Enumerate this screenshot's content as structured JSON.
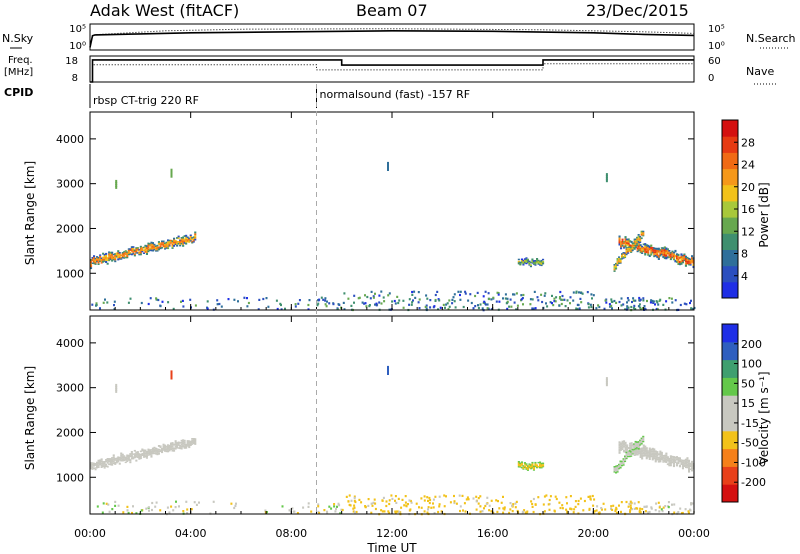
{
  "header": {
    "title": "Adak West (fitACF)",
    "beam": "Beam 07",
    "date": "23/Dec/2015"
  },
  "side_labels": {
    "nsky": "N.Sky",
    "freq_line1": "Freq.",
    "freq_line2": "[MHz]",
    "cpid": "CPID",
    "nsearch": "N.Search",
    "nave": "Nave"
  },
  "cpid_segments": [
    {
      "start_hour": 0,
      "label": "rbsp CT-trig 220 RF"
    },
    {
      "start_hour": 9.0,
      "label": "normalsound (fast) -157 RF"
    }
  ],
  "chart_data": [
    {
      "id": "noise",
      "type": "line",
      "left_axis": {
        "label": "N.Sky",
        "ticks": [
          "10^5",
          "10^0"
        ]
      },
      "right_axis": {
        "label": "N.Search",
        "ticks": [
          "10^5",
          "10^0"
        ]
      },
      "series": [
        {
          "name": "N.Sky",
          "style": "solid",
          "x_hours": [
            0,
            0.1,
            0.2,
            2,
            4,
            8,
            12,
            16,
            20,
            22,
            24
          ],
          "level": [
            0.1,
            0.55,
            0.58,
            0.62,
            0.66,
            0.7,
            0.74,
            0.72,
            0.66,
            0.6,
            0.56
          ]
        },
        {
          "name": "N.Search",
          "style": "dotted",
          "x_hours": [
            0,
            0.1,
            0.2,
            3,
            6,
            12,
            18,
            22,
            24
          ],
          "level": [
            0.1,
            0.5,
            0.55,
            0.7,
            0.76,
            0.78,
            0.74,
            0.66,
            0.6
          ]
        }
      ]
    },
    {
      "id": "freq_nave",
      "type": "line",
      "left_axis": {
        "label": "Freq. [MHz]",
        "ticks": [
          "18",
          "8"
        ],
        "range": [
          8,
          18
        ]
      },
      "right_axis": {
        "label": "Nave",
        "ticks": [
          "60",
          "0"
        ],
        "range": [
          0,
          60
        ]
      },
      "series": [
        {
          "name": "Freq.",
          "style": "solid",
          "x_hours": [
            0,
            0.1,
            0.1,
            10,
            10,
            18,
            18,
            24
          ],
          "y": [
            8,
            8,
            16.5,
            16.5,
            14.5,
            14.5,
            16.5,
            16.5
          ]
        },
        {
          "name": "Nave",
          "style": "dotted",
          "x_hours": [
            0,
            0.1,
            0.1,
            9,
            9,
            18,
            18,
            24
          ],
          "y": [
            0,
            0,
            40,
            40,
            28,
            28,
            42,
            42
          ]
        }
      ]
    },
    {
      "id": "power",
      "type": "heatmap",
      "xlabel": "",
      "ylabel": "Slant Range [km]",
      "xlim_hours": [
        0,
        24
      ],
      "ylim": [
        180,
        4600
      ],
      "y_ticks": [
        1000,
        2000,
        3000,
        4000
      ],
      "x_ticks_hours": [
        0,
        4,
        8,
        12,
        16,
        20,
        24
      ],
      "colorbar": {
        "label": "Power [dB]",
        "ticks": [
          "28",
          "24",
          "20",
          "16",
          "12",
          "8",
          "4"
        ],
        "range": [
          0,
          32
        ],
        "colors": [
          "#1f2fe6",
          "#2b4fbf",
          "#2f6f9a",
          "#3f8f6f",
          "#67a84f",
          "#a8c83a",
          "#f2c21a",
          "#f5981a",
          "#f06a14",
          "#e63a12",
          "#d41010"
        ]
      },
      "bands": [
        {
          "t0": 0.0,
          "t1": 4.2,
          "r_start": [
            1250,
            1800
          ],
          "width": 180,
          "value": 22,
          "edge": 8
        },
        {
          "t0": 21.0,
          "t1": 24.0,
          "r_start": [
            1700,
            1250
          ],
          "width": 220,
          "value": 24,
          "edge": 9
        },
        {
          "t0": 20.8,
          "t1": 22.0,
          "r_start": [
            1150,
            1900
          ],
          "width": 150,
          "value": 20,
          "edge": 9
        },
        {
          "t0": 17.0,
          "t1": 18.0,
          "r_start": [
            1250,
            1250
          ],
          "width": 120,
          "value": 14,
          "edge": 6
        }
      ],
      "scatter_patches": [
        {
          "t": 3.2,
          "r": 3200,
          "value": 12
        },
        {
          "t": 11.8,
          "r": 3350,
          "value": 8
        },
        {
          "t": 1.0,
          "r": 2950,
          "value": 14
        },
        {
          "t": 20.5,
          "r": 3100,
          "value": 10
        }
      ]
    },
    {
      "id": "velocity",
      "type": "heatmap",
      "xlabel": "Time UT",
      "ylabel": "Slant Range [km]",
      "xlim_hours": [
        0,
        24
      ],
      "ylim": [
        180,
        4600
      ],
      "y_ticks": [
        1000,
        2000,
        3000,
        4000
      ],
      "x_ticks_hours": [
        0,
        4,
        8,
        12,
        16,
        20,
        24
      ],
      "x_tick_labels": [
        "00:00",
        "04:00",
        "08:00",
        "12:00",
        "16:00",
        "20:00",
        "00:00"
      ],
      "colorbar": {
        "label": "Velocity [m s^-1]",
        "ticks": [
          "200",
          "100",
          "50",
          "15",
          "-15",
          "-50",
          "-100",
          "-200"
        ],
        "range": [
          -250,
          250
        ],
        "colors": [
          "#d41010",
          "#e8401a",
          "#f5801a",
          "#f2c21a",
          "#c8c8c0",
          "#c8c8c0",
          "#64c84a",
          "#3f9f6f",
          "#2f5fbf",
          "#1f2fe6"
        ]
      },
      "bands": [
        {
          "t0": 0.0,
          "t1": 4.2,
          "r_start": [
            1250,
            1800
          ],
          "width": 180,
          "value": 0,
          "edge": 0
        },
        {
          "t0": 21.0,
          "t1": 24.0,
          "r_start": [
            1700,
            1250
          ],
          "width": 220,
          "value": 0,
          "edge": 0
        },
        {
          "t0": 20.8,
          "t1": 22.0,
          "r_start": [
            1150,
            1900
          ],
          "width": 150,
          "value": 10,
          "edge": 60
        },
        {
          "t0": 17.0,
          "t1": 18.0,
          "r_start": [
            1250,
            1250
          ],
          "width": 120,
          "value": -60,
          "edge": 60
        }
      ],
      "scatter_patches": [
        {
          "t": 3.2,
          "r": 3250,
          "value": -180
        },
        {
          "t": 11.8,
          "r": 3350,
          "value": 150
        },
        {
          "t": 1.0,
          "r": 2950,
          "value": 0
        },
        {
          "t": 20.5,
          "r": 3100,
          "value": 0
        }
      ]
    }
  ]
}
